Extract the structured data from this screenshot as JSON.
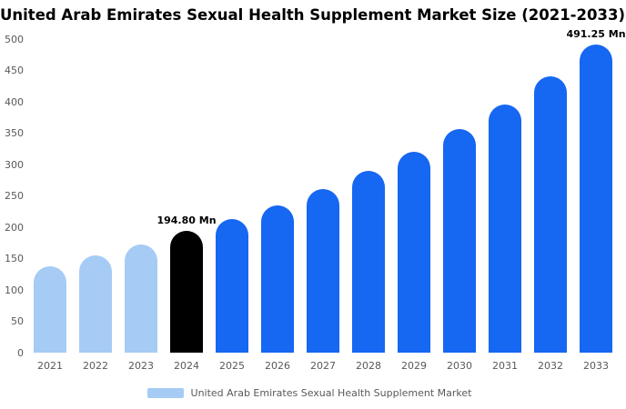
{
  "title": "United Arab Emirates Sexual Health Supplement Market Size (2021-2033)",
  "legend": {
    "label": "United Arab Emirates Sexual Health Supplement Market",
    "swatch_color": "#A6CBF5"
  },
  "colors": {
    "historic_bar": "#A6CBF5",
    "base_year_bar": "#000000",
    "forecast_bar": "#1667F2",
    "axis_text": "#595959",
    "annotation_text": "#000000"
  },
  "chart_data": {
    "type": "bar",
    "title": "United Arab Emirates Sexual Health Supplement Market Size (2021-2033)",
    "xlabel": "",
    "ylabel": "",
    "ylim": [
      0,
      500
    ],
    "yticks": [
      0,
      50,
      100,
      150,
      200,
      250,
      300,
      350,
      400,
      450,
      500
    ],
    "grid": false,
    "legend_position": "bottom",
    "categories": [
      "2021",
      "2022",
      "2023",
      "2024",
      "2025",
      "2026",
      "2027",
      "2028",
      "2029",
      "2030",
      "2031",
      "2032",
      "2033"
    ],
    "values": [
      138,
      155,
      173,
      194.8,
      213,
      235,
      261,
      290,
      321,
      356,
      395,
      440,
      491.25
    ],
    "bar_colors": [
      "#A6CBF5",
      "#A6CBF5",
      "#A6CBF5",
      "#000000",
      "#1667F2",
      "#1667F2",
      "#1667F2",
      "#1667F2",
      "#1667F2",
      "#1667F2",
      "#1667F2",
      "#1667F2",
      "#1667F2"
    ],
    "annotations": [
      {
        "category": "2024",
        "label": "194.80 Mn"
      },
      {
        "category": "2033",
        "label": "491.25 Mn"
      }
    ]
  }
}
